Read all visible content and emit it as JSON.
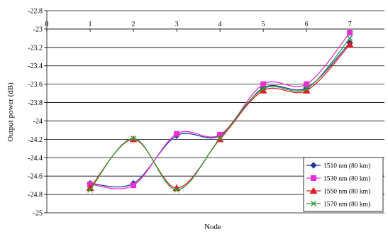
{
  "chart_data": {
    "type": "line",
    "xlabel": "Node",
    "ylabel": "Output power (dB)",
    "x": [
      1,
      2,
      3,
      4,
      5,
      6,
      7
    ],
    "x_ticks": [
      "0",
      "1",
      "2",
      "3",
      "4",
      "5",
      "6",
      "7"
    ],
    "xlim": [
      0,
      7.8
    ],
    "ylim": [
      -25,
      -22.8
    ],
    "y_ticks": [
      "-22.8",
      "-23",
      "-23.2",
      "-23.4",
      "-23.6",
      "-23.8",
      "-24",
      "-24.2",
      "-24.4",
      "-24.6",
      "-24.8",
      "-25"
    ],
    "grid": "horizontal",
    "legend_position": "bottom-right",
    "series": [
      {
        "name": "1510 nm (80 km)",
        "color": "#1f3a93",
        "marker": "diamond",
        "values": [
          -24.68,
          -24.68,
          -24.16,
          -24.16,
          -23.64,
          -23.64,
          -23.15
        ]
      },
      {
        "name": "1530 nm (80 km)",
        "color": "#e82fd5",
        "marker": "square",
        "values": [
          -24.69,
          -24.7,
          -24.14,
          -24.15,
          -23.6,
          -23.6,
          -23.04
        ]
      },
      {
        "name": "1550 nm (80 km)",
        "color": "#e51c23",
        "marker": "triangle",
        "values": [
          -24.73,
          -24.2,
          -24.73,
          -24.2,
          -23.67,
          -23.67,
          -23.17
        ]
      },
      {
        "name": "1570 nm (80 km)",
        "color": "#2e9e3a",
        "marker": "x",
        "values": [
          -24.75,
          -24.19,
          -24.75,
          -24.19,
          -23.65,
          -23.65,
          -23.1
        ]
      }
    ]
  }
}
